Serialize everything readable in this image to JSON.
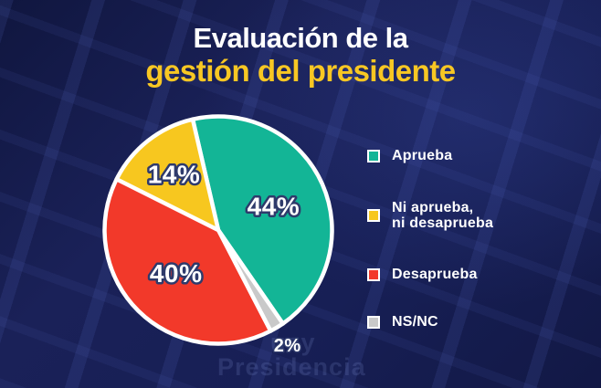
{
  "title": {
    "line1": "Evaluación de la",
    "line2": "gestión del presidente"
  },
  "colors": {
    "background": "#161d50",
    "title_primary": "#ffffff",
    "title_accent": "#f8c723",
    "slice_border": "#ffffff",
    "label_fill": "#ffffff",
    "label_outline": "#2e3a6b"
  },
  "watermark": {
    "line1": "uay",
    "line2": "Presidencia"
  },
  "chart_data": {
    "type": "pie",
    "title": "Evaluación de la gestión del presidente",
    "start_angle_deg": -13,
    "direction": "clockwise",
    "legend_position": "right",
    "total": 100,
    "slices": [
      {
        "label": "Aprueba",
        "value": 44,
        "pct_label": "44%",
        "color": "#13b596"
      },
      {
        "label": "NS/NC",
        "value": 2,
        "pct_label": "2%",
        "color": "#c9c9c9"
      },
      {
        "label": "Desaprueba",
        "value": 40,
        "pct_label": "40%",
        "color": "#f2392a"
      },
      {
        "label": "Ni aprueba, ni desaprueba",
        "value": 14,
        "pct_label": "14%",
        "color": "#f7c71f"
      }
    ]
  },
  "legend": {
    "items": [
      {
        "line1": "Aprueba",
        "line2": "",
        "color": "#13b596"
      },
      {
        "line1": "Ni aprueba,",
        "line2": "ni desaprueba",
        "color": "#f7c71f"
      },
      {
        "line1": "Desaprueba",
        "line2": "",
        "color": "#f2392a"
      },
      {
        "line1": "NS/NC",
        "line2": "",
        "color": "#c9c9c9"
      }
    ]
  }
}
